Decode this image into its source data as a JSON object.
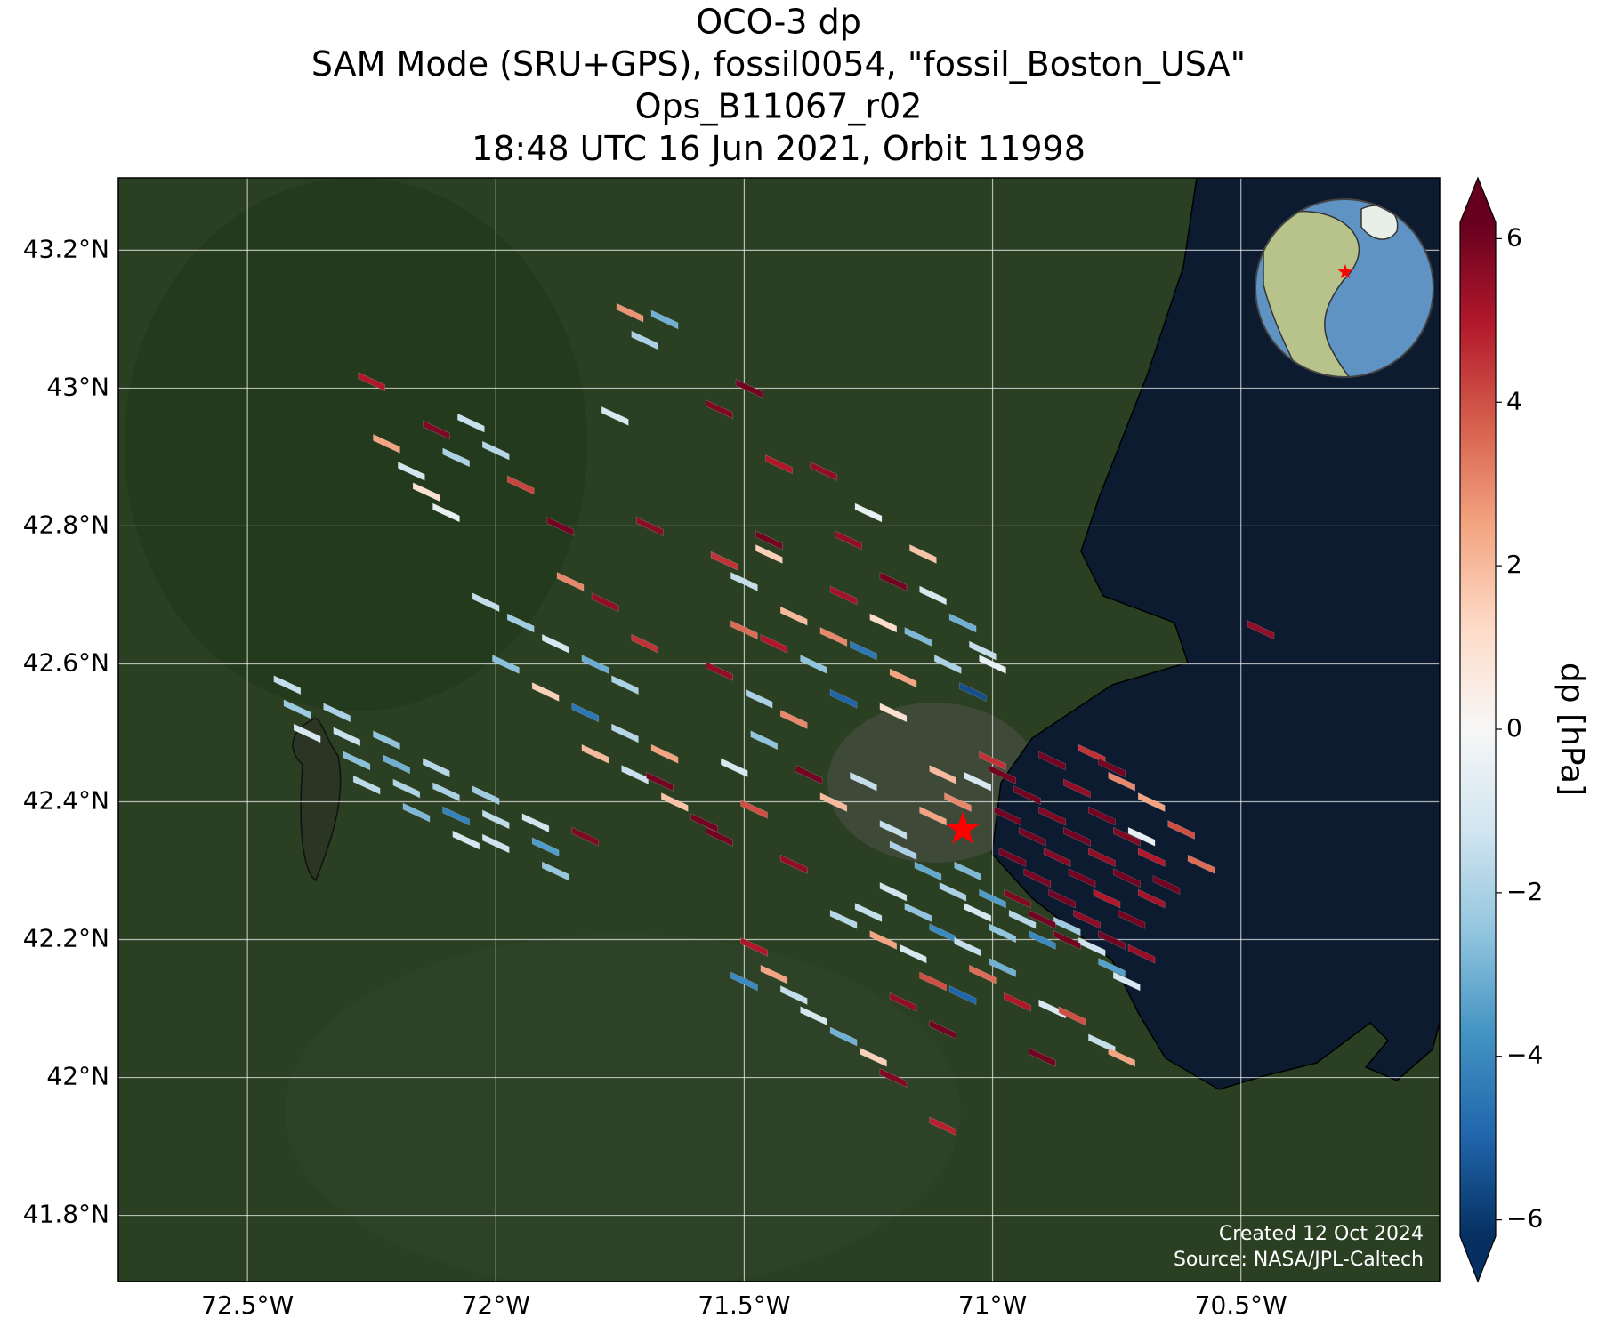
{
  "chart_data": {
    "type": "map",
    "title": [
      "OCO-3 dp",
      "SAM Mode (SRU+GPS), fossil0054, \"fossil_Boston_USA\"",
      "Ops_B11067_r02",
      "18:48 UTC 16 Jun 2021, Orbit 11998"
    ],
    "xlim": [
      -72.76,
      -70.1
    ],
    "ylim": [
      41.704,
      43.305
    ],
    "xticks": [
      {
        "value": -72.5,
        "label": "72.5°W"
      },
      {
        "value": -72,
        "label": "72°W"
      },
      {
        "value": -71.5,
        "label": "71.5°W"
      },
      {
        "value": -71,
        "label": "71°W"
      },
      {
        "value": -70.5,
        "label": "70.5°W"
      }
    ],
    "yticks": [
      {
        "value": 41.8,
        "label": "41.8°N"
      },
      {
        "value": 42,
        "label": "42°N"
      },
      {
        "value": 42.2,
        "label": "42.2°N"
      },
      {
        "value": 42.4,
        "label": "42.4°N"
      },
      {
        "value": 42.6,
        "label": "42.6°N"
      },
      {
        "value": 42.8,
        "label": "42.8°N"
      },
      {
        "value": 43,
        "label": "43°N"
      },
      {
        "value": 43.2,
        "label": "43.2°N"
      }
    ],
    "grid": true,
    "colorbar": {
      "label": "dp [hPa]",
      "clim": [
        -6.2,
        6.2
      ],
      "ticks": [
        {
          "value": -6,
          "label": "−6"
        },
        {
          "value": -4,
          "label": "−4"
        },
        {
          "value": -2,
          "label": "−2"
        },
        0,
        2,
        4,
        6
      ],
      "colormap": [
        "#053061",
        "#2166ac",
        "#4393c3",
        "#92c5de",
        "#d1e5f0",
        "#f7f7f7",
        "#fddbc7",
        "#f4a582",
        "#d6604d",
        "#b2182b",
        "#67001f"
      ]
    },
    "target": {
      "lon": -71.06,
      "lat": 42.36,
      "color": "#ff0000"
    },
    "annotations": [
      "Created 12 Oct 2024",
      "Source: NASA/JPL-Caltech"
    ],
    "cells": [
      {
        "lon": -72.42,
        "lat": 42.57,
        "dp": -1.5
      },
      {
        "lon": -72.32,
        "lat": 42.53,
        "dp": -2.0
      },
      {
        "lon": -72.22,
        "lat": 42.49,
        "dp": -2.5
      },
      {
        "lon": -72.12,
        "lat": 42.45,
        "dp": -1.8
      },
      {
        "lon": -72.02,
        "lat": 42.41,
        "dp": -2.2
      },
      {
        "lon": -71.92,
        "lat": 42.37,
        "dp": -1.2
      },
      {
        "lon": -72.4,
        "lat": 42.535,
        "dp": -2.3
      },
      {
        "lon": -72.3,
        "lat": 42.495,
        "dp": -1.4
      },
      {
        "lon": -72.2,
        "lat": 42.455,
        "dp": -3.0
      },
      {
        "lon": -72.1,
        "lat": 42.415,
        "dp": -2.0
      },
      {
        "lon": -72.0,
        "lat": 42.375,
        "dp": -1.6
      },
      {
        "lon": -71.9,
        "lat": 42.335,
        "dp": -3.5
      },
      {
        "lon": -72.38,
        "lat": 42.5,
        "dp": -1.0
      },
      {
        "lon": -72.28,
        "lat": 42.46,
        "dp": -2.6
      },
      {
        "lon": -72.18,
        "lat": 42.42,
        "dp": -1.9
      },
      {
        "lon": -72.08,
        "lat": 42.38,
        "dp": -4.2
      },
      {
        "lon": -72.0,
        "lat": 42.34,
        "dp": -1.3
      },
      {
        "lon": -71.88,
        "lat": 42.3,
        "dp": -2.4
      },
      {
        "lon": -72.26,
        "lat": 42.425,
        "dp": -1.7
      },
      {
        "lon": -72.16,
        "lat": 42.385,
        "dp": -2.8
      },
      {
        "lon": -72.06,
        "lat": 42.345,
        "dp": -1.1
      },
      {
        "lon": -72.02,
        "lat": 42.69,
        "dp": -1.5
      },
      {
        "lon": -71.95,
        "lat": 42.66,
        "dp": -2.2
      },
      {
        "lon": -71.88,
        "lat": 42.63,
        "dp": -1.0
      },
      {
        "lon": -71.8,
        "lat": 42.6,
        "dp": -3.1
      },
      {
        "lon": -71.74,
        "lat": 42.57,
        "dp": -2.0
      },
      {
        "lon": -71.85,
        "lat": 42.72,
        "dp": 3.0
      },
      {
        "lon": -71.78,
        "lat": 42.69,
        "dp": 5.5
      },
      {
        "lon": -71.7,
        "lat": 42.63,
        "dp": 4.5
      },
      {
        "lon": -71.98,
        "lat": 42.6,
        "dp": -2.6
      },
      {
        "lon": -71.9,
        "lat": 42.56,
        "dp": 1.5
      },
      {
        "lon": -71.82,
        "lat": 42.53,
        "dp": -4.5
      },
      {
        "lon": -71.74,
        "lat": 42.5,
        "dp": -1.8
      },
      {
        "lon": -71.66,
        "lat": 42.47,
        "dp": 2.5
      },
      {
        "lon": -71.8,
        "lat": 42.47,
        "dp": 2.0
      },
      {
        "lon": -71.72,
        "lat": 42.44,
        "dp": -1.4
      },
      {
        "lon": -71.64,
        "lat": 42.4,
        "dp": 1.8
      },
      {
        "lon": -72.22,
        "lat": 42.92,
        "dp": 2.5
      },
      {
        "lon": -72.17,
        "lat": 42.88,
        "dp": -1.2
      },
      {
        "lon": -72.12,
        "lat": 42.94,
        "dp": 5.8
      },
      {
        "lon": -72.08,
        "lat": 42.9,
        "dp": -2.0
      },
      {
        "lon": -72.05,
        "lat": 42.95,
        "dp": -1.4
      },
      {
        "lon": -72.14,
        "lat": 42.85,
        "dp": 1.0
      },
      {
        "lon": -72.1,
        "lat": 42.82,
        "dp": -0.5
      },
      {
        "lon": -72.0,
        "lat": 42.91,
        "dp": -1.8
      },
      {
        "lon": -72.25,
        "lat": 43.01,
        "dp": 5.0
      },
      {
        "lon": -71.95,
        "lat": 42.86,
        "dp": 4.2
      },
      {
        "lon": -71.73,
        "lat": 43.11,
        "dp": 2.8
      },
      {
        "lon": -71.7,
        "lat": 43.07,
        "dp": -2.0
      },
      {
        "lon": -71.66,
        "lat": 43.1,
        "dp": -3.0
      },
      {
        "lon": -71.76,
        "lat": 42.96,
        "dp": -1.0
      },
      {
        "lon": -71.55,
        "lat": 42.97,
        "dp": 5.8
      },
      {
        "lon": -71.49,
        "lat": 43.0,
        "dp": 6.0
      },
      {
        "lon": -71.43,
        "lat": 42.89,
        "dp": 5.0
      },
      {
        "lon": -71.34,
        "lat": 42.88,
        "dp": 5.5
      },
      {
        "lon": -71.87,
        "lat": 42.8,
        "dp": 6.0
      },
      {
        "lon": -71.69,
        "lat": 42.8,
        "dp": 5.6
      },
      {
        "lon": -71.45,
        "lat": 42.78,
        "dp": 6.0
      },
      {
        "lon": -71.25,
        "lat": 42.82,
        "dp": -0.5
      },
      {
        "lon": -71.29,
        "lat": 42.78,
        "dp": 5.5
      },
      {
        "lon": -71.54,
        "lat": 42.75,
        "dp": 4.5
      },
      {
        "lon": -71.5,
        "lat": 42.72,
        "dp": -1.5
      },
      {
        "lon": -71.45,
        "lat": 42.76,
        "dp": 1.5
      },
      {
        "lon": -71.5,
        "lat": 42.65,
        "dp": 3.5
      },
      {
        "lon": -71.44,
        "lat": 42.63,
        "dp": 5.0
      },
      {
        "lon": -71.4,
        "lat": 42.67,
        "dp": 2.0
      },
      {
        "lon": -71.36,
        "lat": 42.6,
        "dp": -2.5
      },
      {
        "lon": -71.32,
        "lat": 42.64,
        "dp": 3.0
      },
      {
        "lon": -71.3,
        "lat": 42.7,
        "dp": 5.2
      },
      {
        "lon": -71.26,
        "lat": 42.62,
        "dp": -4.5
      },
      {
        "lon": -71.22,
        "lat": 42.66,
        "dp": 1.2
      },
      {
        "lon": -71.2,
        "lat": 42.72,
        "dp": 6.0
      },
      {
        "lon": -71.18,
        "lat": 42.58,
        "dp": 2.5
      },
      {
        "lon": -71.15,
        "lat": 42.64,
        "dp": -2.8
      },
      {
        "lon": -71.12,
        "lat": 42.7,
        "dp": -1.0
      },
      {
        "lon": -71.14,
        "lat": 42.76,
        "dp": 1.8
      },
      {
        "lon": -71.09,
        "lat": 42.6,
        "dp": -2.0
      },
      {
        "lon": -71.06,
        "lat": 42.66,
        "dp": -3.0
      },
      {
        "lon": -71.04,
        "lat": 42.56,
        "dp": -5.5
      },
      {
        "lon": -71.02,
        "lat": 42.62,
        "dp": -1.5
      },
      {
        "lon": -71.0,
        "lat": 42.6,
        "dp": -0.5
      },
      {
        "lon": -71.55,
        "lat": 42.59,
        "dp": 5.5
      },
      {
        "lon": -71.47,
        "lat": 42.55,
        "dp": -2.0
      },
      {
        "lon": -71.4,
        "lat": 42.52,
        "dp": 3.0
      },
      {
        "lon": -71.3,
        "lat": 42.55,
        "dp": -5.0
      },
      {
        "lon": -71.2,
        "lat": 42.53,
        "dp": 1.0
      },
      {
        "lon": -71.46,
        "lat": 42.49,
        "dp": -2.5
      },
      {
        "lon": -71.52,
        "lat": 42.45,
        "dp": -1.0
      },
      {
        "lon": -71.37,
        "lat": 42.44,
        "dp": 6.0
      },
      {
        "lon": -71.32,
        "lat": 42.4,
        "dp": 2.0
      },
      {
        "lon": -71.26,
        "lat": 42.43,
        "dp": -1.5
      },
      {
        "lon": -71.2,
        "lat": 42.36,
        "dp": -1.5
      },
      {
        "lon": -71.48,
        "lat": 42.39,
        "dp": 4.0
      },
      {
        "lon": -71.55,
        "lat": 42.35,
        "dp": 6.0
      },
      {
        "lon": -71.4,
        "lat": 42.31,
        "dp": 5.5
      },
      {
        "lon": -71.82,
        "lat": 42.35,
        "dp": 5.8
      },
      {
        "lon": -71.67,
        "lat": 42.43,
        "dp": 6.0
      },
      {
        "lon": -71.58,
        "lat": 42.37,
        "dp": 6.0
      },
      {
        "lon": -71.1,
        "lat": 42.44,
        "dp": 2.0
      },
      {
        "lon": -71.07,
        "lat": 42.4,
        "dp": 3.0
      },
      {
        "lon": -71.03,
        "lat": 42.43,
        "dp": -1.0
      },
      {
        "lon": -71.12,
        "lat": 42.38,
        "dp": 2.5
      },
      {
        "lon": -71.0,
        "lat": 42.46,
        "dp": 4.5
      },
      {
        "lon": -71.18,
        "lat": 42.33,
        "dp": -2.0
      },
      {
        "lon": -71.13,
        "lat": 42.3,
        "dp": -3.2
      },
      {
        "lon": -71.08,
        "lat": 42.27,
        "dp": -2.0
      },
      {
        "lon": -71.03,
        "lat": 42.24,
        "dp": -1.0
      },
      {
        "lon": -70.98,
        "lat": 42.21,
        "dp": -2.5
      },
      {
        "lon": -71.2,
        "lat": 42.27,
        "dp": -1.2
      },
      {
        "lon": -71.15,
        "lat": 42.24,
        "dp": -2.5
      },
      {
        "lon": -71.1,
        "lat": 42.21,
        "dp": -4.0
      },
      {
        "lon": -71.05,
        "lat": 42.19,
        "dp": -1.5
      },
      {
        "lon": -70.98,
        "lat": 42.16,
        "dp": -3.0
      },
      {
        "lon": -71.25,
        "lat": 42.24,
        "dp": -1.5
      },
      {
        "lon": -71.22,
        "lat": 42.2,
        "dp": 2.5
      },
      {
        "lon": -71.16,
        "lat": 42.18,
        "dp": -1.0
      },
      {
        "lon": -71.05,
        "lat": 42.3,
        "dp": -2.8
      },
      {
        "lon": -71.0,
        "lat": 42.26,
        "dp": -3.5
      },
      {
        "lon": -70.94,
        "lat": 42.23,
        "dp": -1.8
      },
      {
        "lon": -70.9,
        "lat": 42.2,
        "dp": -4.0
      },
      {
        "lon": -70.85,
        "lat": 42.22,
        "dp": -2.2
      },
      {
        "lon": -70.8,
        "lat": 42.19,
        "dp": -1.3
      },
      {
        "lon": -70.76,
        "lat": 42.16,
        "dp": -3.4
      },
      {
        "lon": -70.73,
        "lat": 42.14,
        "dp": -1.0
      },
      {
        "lon": -71.12,
        "lat": 42.14,
        "dp": 4.0
      },
      {
        "lon": -71.06,
        "lat": 42.12,
        "dp": -5.0
      },
      {
        "lon": -71.02,
        "lat": 42.15,
        "dp": 3.5
      },
      {
        "lon": -70.95,
        "lat": 42.11,
        "dp": 5.0
      },
      {
        "lon": -70.88,
        "lat": 42.1,
        "dp": -1.0
      },
      {
        "lon": -70.84,
        "lat": 42.09,
        "dp": 4.0
      },
      {
        "lon": -70.78,
        "lat": 42.05,
        "dp": -1.5
      },
      {
        "lon": -70.74,
        "lat": 42.03,
        "dp": 2.5
      },
      {
        "lon": -71.3,
        "lat": 42.23,
        "dp": -1.8
      },
      {
        "lon": -71.48,
        "lat": 42.19,
        "dp": 5.0
      },
      {
        "lon": -71.44,
        "lat": 42.15,
        "dp": 2.5
      },
      {
        "lon": -71.4,
        "lat": 42.12,
        "dp": -1.5
      },
      {
        "lon": -71.5,
        "lat": 42.14,
        "dp": -4.0
      },
      {
        "lon": -71.36,
        "lat": 42.09,
        "dp": -1.0
      },
      {
        "lon": -71.3,
        "lat": 42.06,
        "dp": -3.0
      },
      {
        "lon": -71.24,
        "lat": 42.03,
        "dp": 1.5
      },
      {
        "lon": -71.2,
        "lat": 42.0,
        "dp": 5.8
      },
      {
        "lon": -71.1,
        "lat": 42.07,
        "dp": 6.0
      },
      {
        "lon": -70.9,
        "lat": 42.03,
        "dp": 6.0
      },
      {
        "lon": -71.1,
        "lat": 41.93,
        "dp": 4.8
      },
      {
        "lon": -71.18,
        "lat": 42.11,
        "dp": 5.5
      },
      {
        "lon": -70.98,
        "lat": 42.44,
        "dp": 6.0
      },
      {
        "lon": -70.93,
        "lat": 42.41,
        "dp": 6.0
      },
      {
        "lon": -70.88,
        "lat": 42.38,
        "dp": 5.8
      },
      {
        "lon": -70.83,
        "lat": 42.35,
        "dp": 6.0
      },
      {
        "lon": -70.78,
        "lat": 42.32,
        "dp": 5.5
      },
      {
        "lon": -70.73,
        "lat": 42.29,
        "dp": 6.0
      },
      {
        "lon": -70.68,
        "lat": 42.26,
        "dp": 5.2
      },
      {
        "lon": -70.97,
        "lat": 42.38,
        "dp": 6.0
      },
      {
        "lon": -70.92,
        "lat": 42.35,
        "dp": 6.0
      },
      {
        "lon": -70.87,
        "lat": 42.32,
        "dp": 5.7
      },
      {
        "lon": -70.82,
        "lat": 42.29,
        "dp": 6.0
      },
      {
        "lon": -70.77,
        "lat": 42.26,
        "dp": 5.0
      },
      {
        "lon": -70.72,
        "lat": 42.23,
        "dp": 6.0
      },
      {
        "lon": -70.96,
        "lat": 42.32,
        "dp": 6.0
      },
      {
        "lon": -70.91,
        "lat": 42.29,
        "dp": 5.9
      },
      {
        "lon": -70.86,
        "lat": 42.26,
        "dp": 6.0
      },
      {
        "lon": -70.81,
        "lat": 42.23,
        "dp": 5.6
      },
      {
        "lon": -70.76,
        "lat": 42.2,
        "dp": 6.0
      },
      {
        "lon": -70.95,
        "lat": 42.26,
        "dp": 5.8
      },
      {
        "lon": -70.9,
        "lat": 42.23,
        "dp": 6.0
      },
      {
        "lon": -70.85,
        "lat": 42.2,
        "dp": 6.0
      },
      {
        "lon": -70.7,
        "lat": 42.18,
        "dp": 5.4
      },
      {
        "lon": -70.88,
        "lat": 42.46,
        "dp": 6.0
      },
      {
        "lon": -70.83,
        "lat": 42.42,
        "dp": 5.5
      },
      {
        "lon": -70.78,
        "lat": 42.38,
        "dp": 6.0
      },
      {
        "lon": -70.73,
        "lat": 42.35,
        "dp": 5.8
      },
      {
        "lon": -70.68,
        "lat": 42.32,
        "dp": 5.0
      },
      {
        "lon": -70.8,
        "lat": 42.47,
        "dp": 4.5
      },
      {
        "lon": -70.74,
        "lat": 42.43,
        "dp": 3.0
      },
      {
        "lon": -70.68,
        "lat": 42.4,
        "dp": 2.5
      },
      {
        "lon": -70.62,
        "lat": 42.36,
        "dp": 4.0
      },
      {
        "lon": -70.58,
        "lat": 42.31,
        "dp": 3.5
      },
      {
        "lon": -70.7,
        "lat": 42.35,
        "dp": -0.5
      },
      {
        "lon": -70.76,
        "lat": 42.45,
        "dp": 6.0
      },
      {
        "lon": -70.65,
        "lat": 42.28,
        "dp": 6.0
      },
      {
        "lon": -70.46,
        "lat": 42.65,
        "dp": 5.5
      }
    ]
  }
}
